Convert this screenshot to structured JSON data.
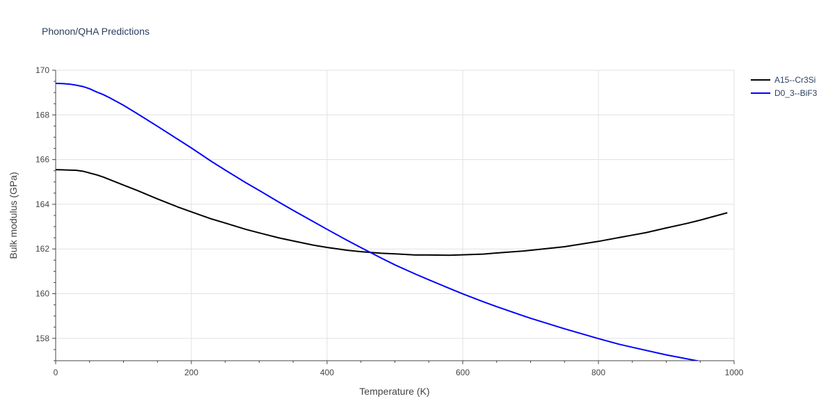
{
  "chart_data": {
    "type": "line",
    "title": "Phonon/QHA Predictions",
    "xlabel": "Temperature (K)",
    "ylabel": "Bulk modulus (GPa)",
    "xlim": [
      0,
      1000
    ],
    "ylim": [
      157,
      170
    ],
    "x_ticks": [
      0,
      200,
      400,
      600,
      800,
      1000
    ],
    "y_ticks": [
      158,
      160,
      162,
      164,
      166,
      168,
      170
    ],
    "grid": true,
    "legend_position": "top-right",
    "series": [
      {
        "name": "A15--Cr3Si",
        "color": "#000000",
        "x": [
          0,
          10,
          20,
          30,
          40,
          50,
          60,
          70,
          80,
          100,
          120,
          150,
          180,
          200,
          230,
          250,
          280,
          300,
          330,
          350,
          380,
          400,
          430,
          450,
          480,
          500,
          530,
          550,
          580,
          600,
          630,
          650,
          690,
          700,
          750,
          800,
          850,
          870,
          900,
          930,
          950,
          990
        ],
        "y": [
          165.55,
          165.54,
          165.53,
          165.52,
          165.48,
          165.4,
          165.32,
          165.22,
          165.1,
          164.86,
          164.62,
          164.24,
          163.88,
          163.66,
          163.34,
          163.16,
          162.88,
          162.72,
          162.49,
          162.36,
          162.17,
          162.07,
          161.94,
          161.88,
          161.81,
          161.78,
          161.73,
          161.73,
          161.72,
          161.74,
          161.77,
          161.82,
          161.91,
          161.94,
          162.1,
          162.34,
          162.62,
          162.73,
          162.94,
          163.14,
          163.29,
          163.62
        ]
      },
      {
        "name": "D0_3--BiF3",
        "color": "#0000ff",
        "x": [
          0,
          10,
          20,
          30,
          40,
          50,
          60,
          70,
          80,
          100,
          120,
          150,
          180,
          200,
          230,
          250,
          280,
          300,
          330,
          350,
          380,
          400,
          430,
          450,
          480,
          500,
          530,
          550,
          580,
          600,
          630,
          650,
          690,
          700,
          750,
          800,
          830,
          850,
          900,
          950,
          990
        ],
        "y": [
          169.41,
          169.4,
          169.38,
          169.33,
          169.27,
          169.17,
          169.03,
          168.91,
          168.76,
          168.43,
          168.06,
          167.49,
          166.91,
          166.52,
          165.91,
          165.53,
          164.97,
          164.62,
          164.08,
          163.73,
          163.22,
          162.88,
          162.38,
          162.06,
          161.59,
          161.29,
          160.88,
          160.62,
          160.24,
          159.99,
          159.64,
          159.42,
          159.0,
          158.9,
          158.43,
          157.99,
          157.74,
          157.6,
          157.26,
          156.97,
          156.74
        ]
      }
    ]
  }
}
